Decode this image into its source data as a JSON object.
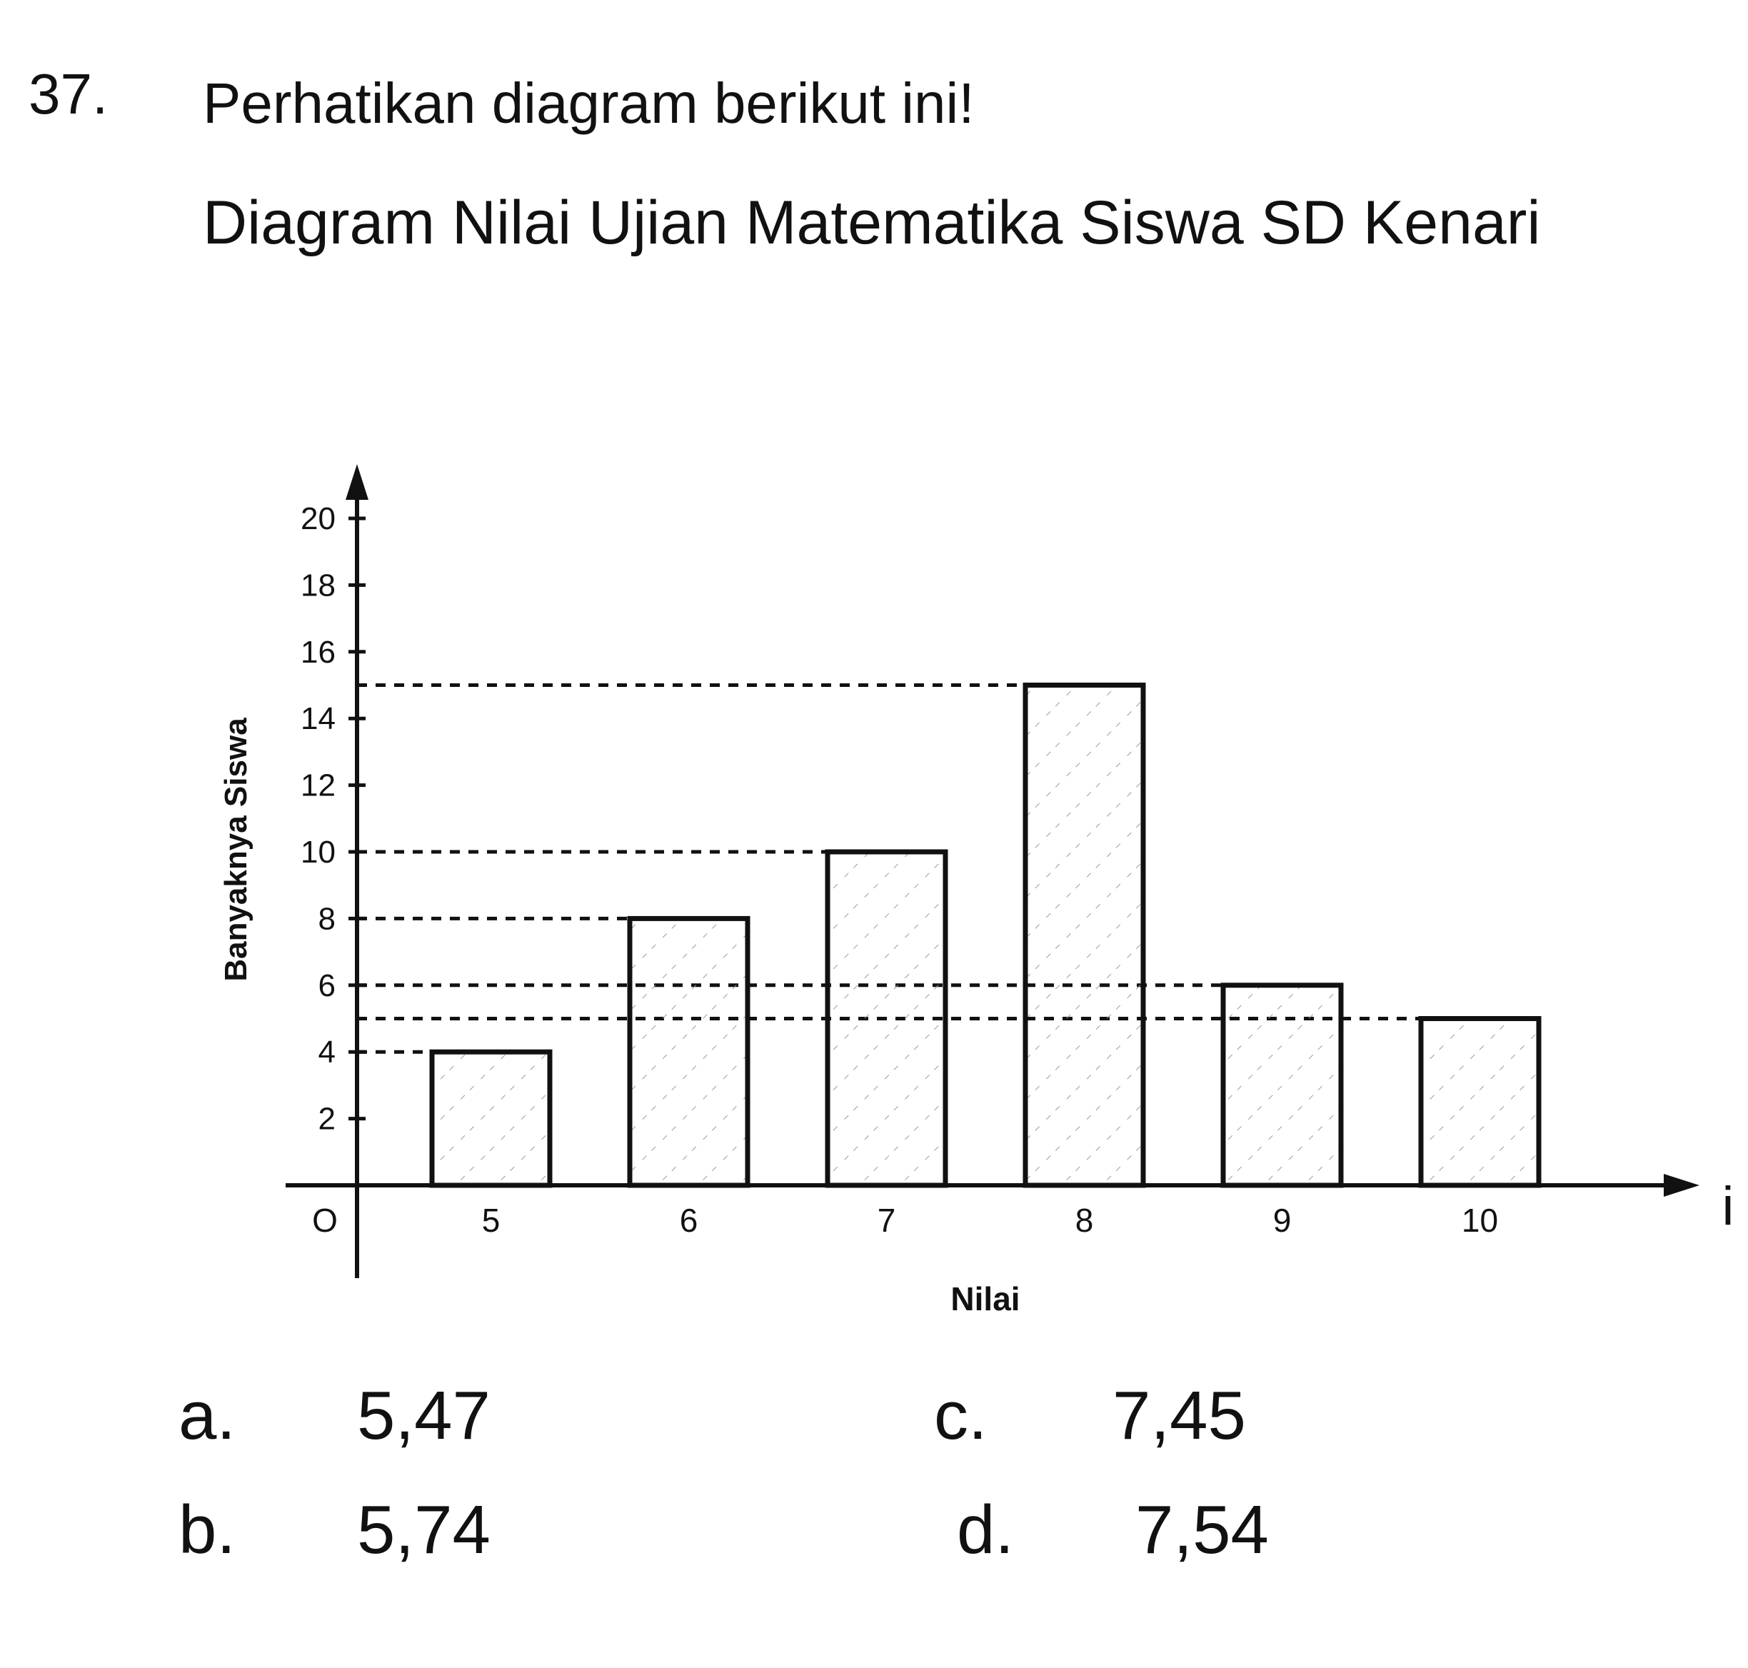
{
  "question": {
    "number": "37.",
    "prompt": "Perhatikan diagram berikut ini!"
  },
  "chart_data": {
    "type": "bar",
    "title": "Diagram Nilai Ujian Matematika Siswa SD Kenari",
    "xlabel": "Nilai",
    "ylabel": "Banyaknya Siswa",
    "origin_label": "O",
    "x_axis_end_label": "i",
    "categories": [
      "5",
      "6",
      "7",
      "8",
      "9",
      "10"
    ],
    "values": [
      4,
      8,
      10,
      15,
      6,
      5
    ],
    "ylim": [
      0,
      20
    ],
    "y_ticks": [
      "2",
      "4",
      "6",
      "8",
      "10",
      "12",
      "14",
      "16",
      "18",
      "20"
    ],
    "grid": false,
    "guide_lines": "dashed",
    "legend": "none"
  },
  "options": [
    {
      "label": "a.",
      "value": "5,47"
    },
    {
      "label": "b.",
      "value": "5,74"
    },
    {
      "label": "c.",
      "value": "7,45"
    },
    {
      "label": "d.",
      "value": "7,54"
    }
  ],
  "colors": {
    "ink": "#111111",
    "bar_fill": "#ffffff",
    "hatch": "#9a9a9a"
  }
}
